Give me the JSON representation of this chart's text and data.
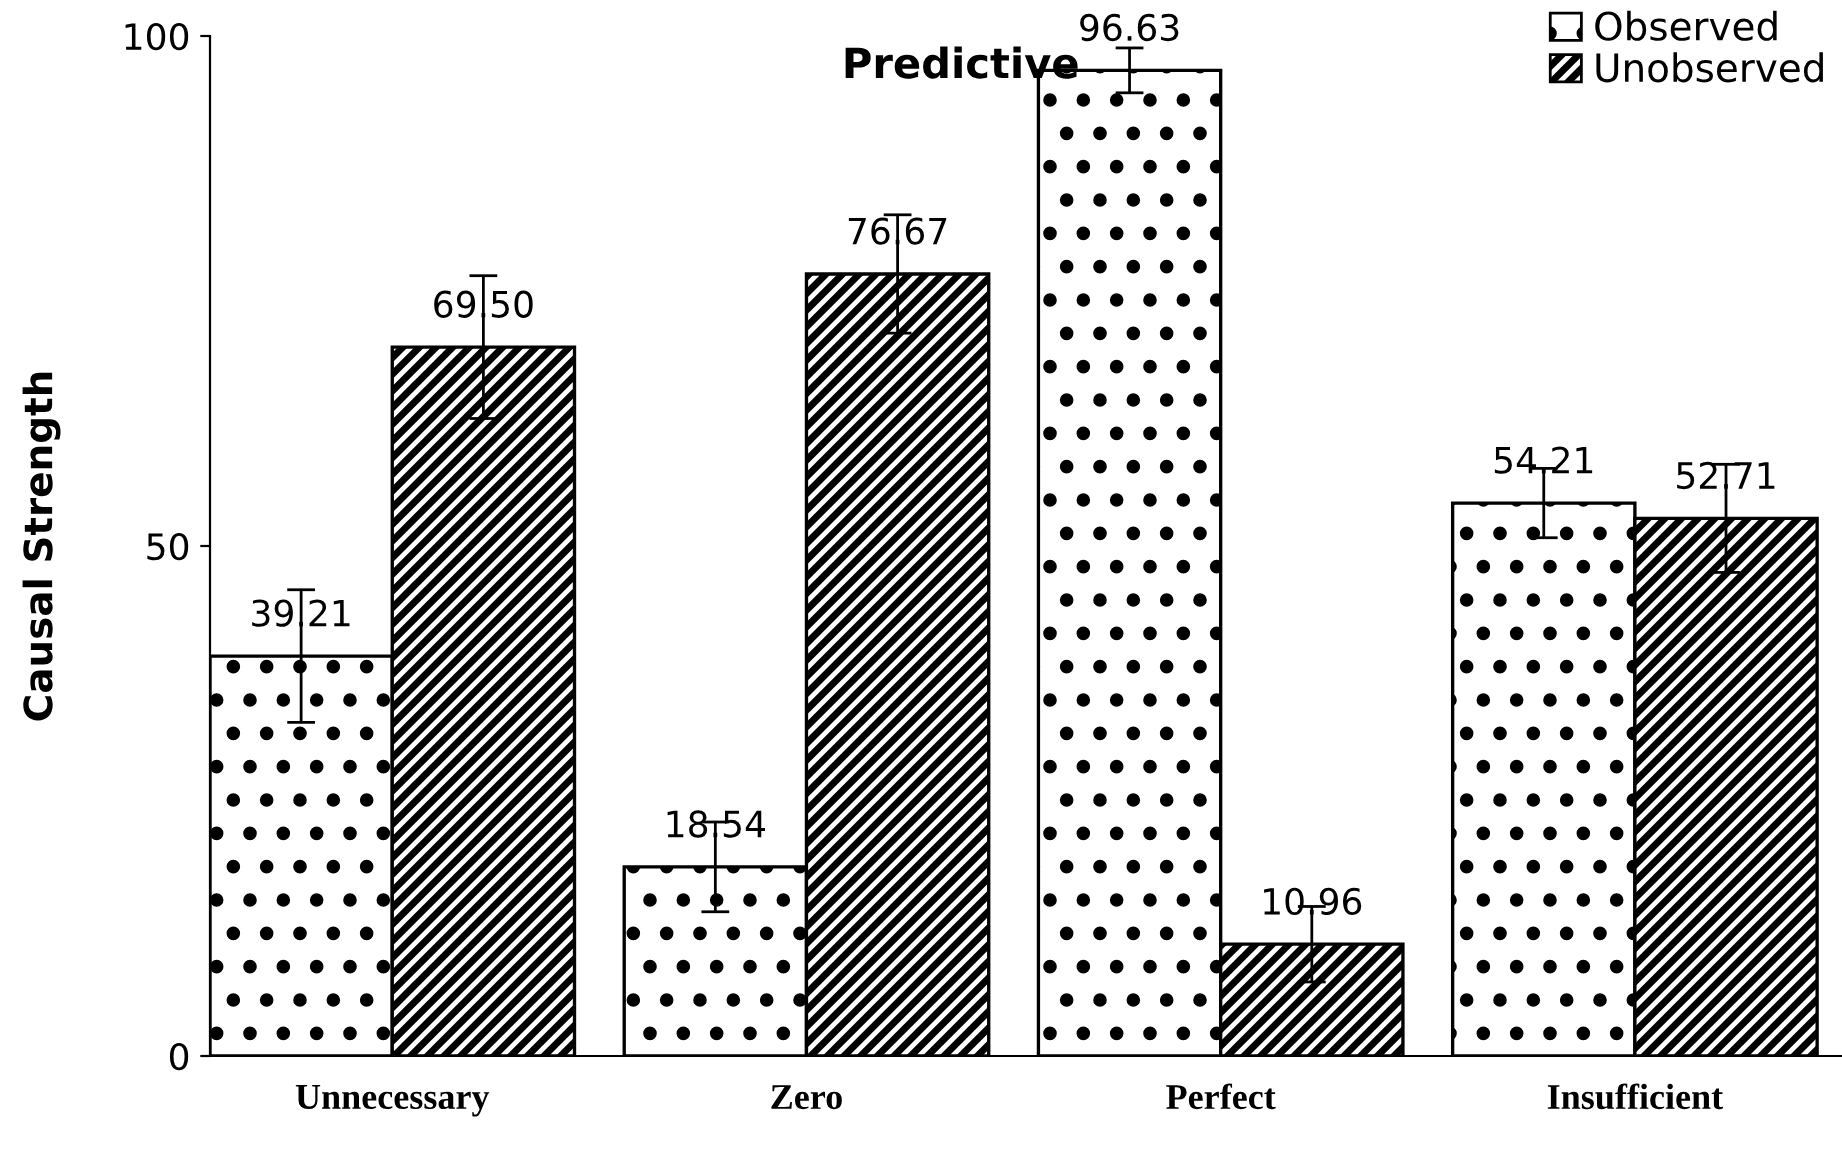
{
  "chart_data": {
    "type": "bar",
    "title": "Predictive",
    "ylabel": "Causal Strength",
    "categories": [
      "Unnecessary",
      "Zero",
      "Perfect",
      "Insufficient"
    ],
    "series": [
      {
        "name": "Observed",
        "color": "#000000",
        "values": [
          39.21,
          18.54,
          96.63,
          54.21
        ],
        "value_labels": [
          "39.21",
          "18.54",
          "96.63",
          "54.21"
        ],
        "errors": [
          6.5,
          4.4,
          2.2,
          3.4
        ]
      },
      {
        "name": "Unobserved",
        "color": "#000000",
        "values": [
          69.5,
          76.67,
          10.96,
          52.71
        ],
        "value_labels": [
          "69.50",
          "76.67",
          "10.96",
          "52.71"
        ],
        "errors": [
          7,
          5.8,
          3.7,
          5.3
        ]
      }
    ],
    "ylim": [
      0,
      100
    ],
    "yticks": [
      0,
      50,
      100
    ],
    "grid": false,
    "legend": "top right"
  }
}
